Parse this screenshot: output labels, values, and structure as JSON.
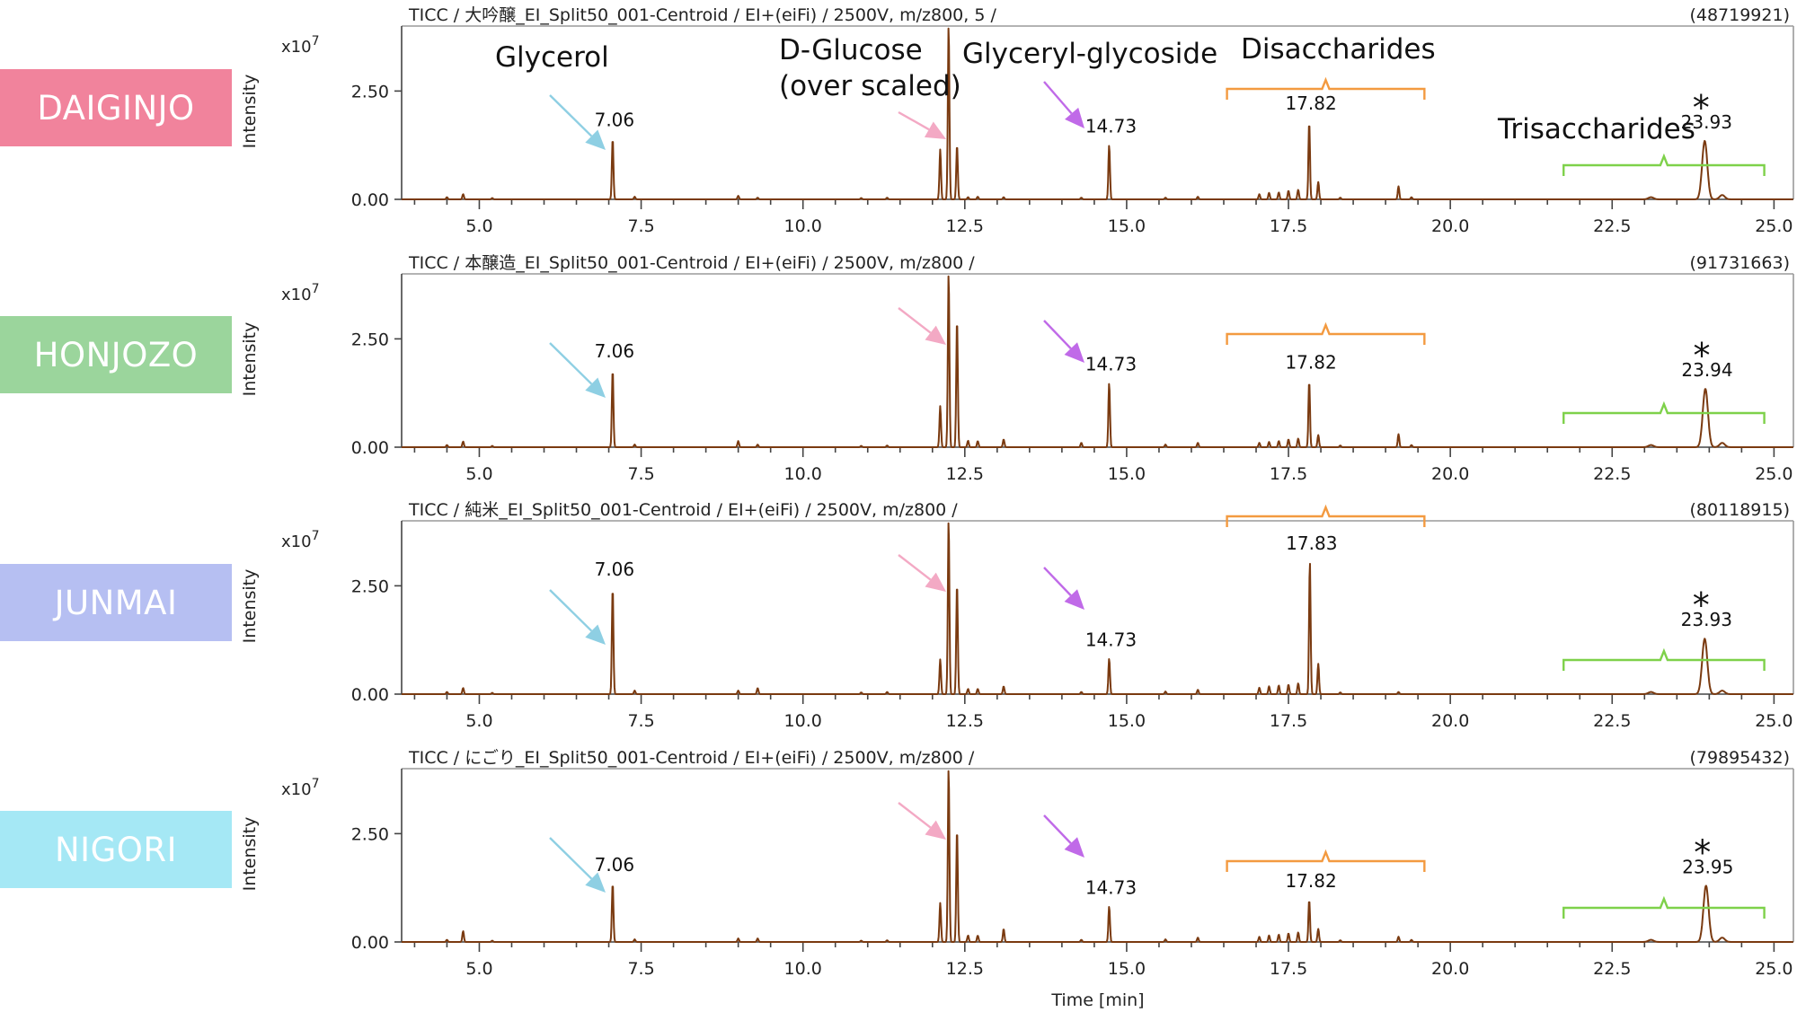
{
  "figure": {
    "xlabel": "Time [min]",
    "ylabel": "Intensity",
    "exponent_base": "x10",
    "exponent_power": "7",
    "annotations": {
      "glycerol": "Glycerol",
      "glucose_line1": "D-Glucose",
      "glucose_line2": "(over scaled)",
      "glyceryl_glycoside": "Glyceryl-glycoside",
      "disaccharides": "Disaccharides",
      "trisaccharides": "Trisaccharides",
      "star": "*"
    },
    "colors": {
      "trace": "#7a3a10",
      "glycerol_arrow": "#8ecfe3",
      "glucose_arrow": "#f3a9c4",
      "glycoside_arrow": "#c06ae8",
      "disaccharides_brace": "#f39a40",
      "trisaccharides_brace": "#7ed14a"
    }
  },
  "chart_data": [
    {
      "type": "line",
      "sample": "DAIGINJO",
      "badge_color": "#f1839c",
      "header": "TICC / 大吟醸_EI_Split50_001-Centroid / EI+(eiFi) / 2500V, m/z800, 5 /",
      "total_intensity": "(48719921)",
      "xlabel": "",
      "ylabel": "Intensity",
      "y_scale": "x10^7",
      "xlim": [
        3.8,
        25.3
      ],
      "ylim": [
        0,
        4.0
      ],
      "x_ticks": [
        "5.0",
        "7.5",
        "10.0",
        "12.5",
        "15.0",
        "17.5",
        "20.0",
        "22.5",
        "25.0"
      ],
      "y_ticks": [
        "0.00",
        "2.50"
      ],
      "peak_labels": [
        {
          "x": 7.06,
          "text": "7.06"
        },
        {
          "x": 14.73,
          "text": "14.73"
        },
        {
          "x": 17.82,
          "text": "17.82"
        },
        {
          "x": 23.93,
          "text": "23.93"
        }
      ],
      "peaks": [
        [
          4.5,
          0.05
        ],
        [
          4.75,
          0.12
        ],
        [
          5.2,
          0.03
        ],
        [
          7.06,
          1.4
        ],
        [
          7.4,
          0.06
        ],
        [
          9.0,
          0.08
        ],
        [
          9.3,
          0.04
        ],
        [
          10.9,
          0.03
        ],
        [
          11.3,
          0.04
        ],
        [
          12.12,
          1.15
        ],
        [
          12.25,
          4.0
        ],
        [
          12.38,
          1.25
        ],
        [
          12.55,
          0.05
        ],
        [
          12.7,
          0.06
        ],
        [
          13.1,
          0.05
        ],
        [
          14.3,
          0.04
        ],
        [
          14.73,
          1.25
        ],
        [
          15.6,
          0.04
        ],
        [
          16.1,
          0.06
        ],
        [
          17.05,
          0.12
        ],
        [
          17.2,
          0.15
        ],
        [
          17.35,
          0.16
        ],
        [
          17.5,
          0.2
        ],
        [
          17.65,
          0.22
        ],
        [
          17.82,
          1.78
        ],
        [
          17.96,
          0.4
        ],
        [
          18.3,
          0.04
        ],
        [
          19.2,
          0.3
        ],
        [
          19.4,
          0.05
        ],
        [
          23.1,
          0.05
        ],
        [
          23.93,
          1.35
        ],
        [
          24.2,
          0.1
        ]
      ]
    },
    {
      "type": "line",
      "sample": "HONJOZO",
      "badge_color": "#9bd59c",
      "header": "TICC / 本醸造_EI_Split50_001-Centroid / EI+(eiFi) / 2500V, m/z800 /",
      "total_intensity": "(91731663)",
      "xlabel": "",
      "ylabel": "Intensity",
      "y_scale": "x10^7",
      "xlim": [
        3.8,
        25.3
      ],
      "ylim": [
        0,
        4.0
      ],
      "x_ticks": [
        "5.0",
        "7.5",
        "10.0",
        "12.5",
        "15.0",
        "17.5",
        "20.0",
        "22.5",
        "25.0"
      ],
      "y_ticks": [
        "0.00",
        "2.50"
      ],
      "peak_labels": [
        {
          "x": 7.06,
          "text": "7.06"
        },
        {
          "x": 14.73,
          "text": "14.73"
        },
        {
          "x": 17.82,
          "text": "17.82"
        },
        {
          "x": 23.94,
          "text": "23.94"
        }
      ],
      "peaks": [
        [
          4.5,
          0.05
        ],
        [
          4.75,
          0.13
        ],
        [
          5.2,
          0.03
        ],
        [
          7.06,
          1.78
        ],
        [
          7.4,
          0.06
        ],
        [
          9.0,
          0.14
        ],
        [
          9.3,
          0.06
        ],
        [
          10.9,
          0.03
        ],
        [
          11.3,
          0.04
        ],
        [
          12.12,
          0.95
        ],
        [
          12.25,
          4.0
        ],
        [
          12.38,
          2.95
        ],
        [
          12.55,
          0.15
        ],
        [
          12.7,
          0.14
        ],
        [
          13.1,
          0.18
        ],
        [
          14.3,
          0.1
        ],
        [
          14.73,
          1.48
        ],
        [
          15.6,
          0.06
        ],
        [
          16.1,
          0.1
        ],
        [
          17.05,
          0.1
        ],
        [
          17.2,
          0.12
        ],
        [
          17.35,
          0.14
        ],
        [
          17.5,
          0.18
        ],
        [
          17.65,
          0.2
        ],
        [
          17.82,
          1.52
        ],
        [
          17.96,
          0.28
        ],
        [
          18.3,
          0.04
        ],
        [
          19.2,
          0.3
        ],
        [
          19.4,
          0.05
        ],
        [
          23.1,
          0.05
        ],
        [
          23.94,
          1.35
        ],
        [
          24.2,
          0.1
        ]
      ]
    },
    {
      "type": "line",
      "sample": "JUNMAI",
      "badge_color": "#b6bff2",
      "header": "TICC / 純米_EI_Split50_001-Centroid / EI+(eiFi) / 2500V, m/z800 /",
      "total_intensity": "(80118915)",
      "xlabel": "",
      "ylabel": "Intensity",
      "y_scale": "x10^7",
      "xlim": [
        3.8,
        25.3
      ],
      "ylim": [
        0,
        4.0
      ],
      "x_ticks": [
        "5.0",
        "7.5",
        "10.0",
        "12.5",
        "15.0",
        "17.5",
        "20.0",
        "22.5",
        "25.0"
      ],
      "y_ticks": [
        "0.00",
        "2.50"
      ],
      "peak_labels": [
        {
          "x": 7.06,
          "text": "7.06"
        },
        {
          "x": 14.73,
          "text": "14.73"
        },
        {
          "x": 17.83,
          "text": "17.83"
        },
        {
          "x": 23.93,
          "text": "23.93"
        }
      ],
      "peaks": [
        [
          4.5,
          0.05
        ],
        [
          4.75,
          0.14
        ],
        [
          5.2,
          0.03
        ],
        [
          7.06,
          2.45
        ],
        [
          7.4,
          0.08
        ],
        [
          9.0,
          0.08
        ],
        [
          9.3,
          0.14
        ],
        [
          10.9,
          0.04
        ],
        [
          11.3,
          0.05
        ],
        [
          12.12,
          0.8
        ],
        [
          12.25,
          4.0
        ],
        [
          12.38,
          2.55
        ],
        [
          12.55,
          0.12
        ],
        [
          12.7,
          0.12
        ],
        [
          13.1,
          0.18
        ],
        [
          14.3,
          0.05
        ],
        [
          14.73,
          0.82
        ],
        [
          15.6,
          0.06
        ],
        [
          16.1,
          0.1
        ],
        [
          17.05,
          0.15
        ],
        [
          17.2,
          0.18
        ],
        [
          17.35,
          0.2
        ],
        [
          17.5,
          0.22
        ],
        [
          17.65,
          0.25
        ],
        [
          17.83,
          3.05
        ],
        [
          17.96,
          0.7
        ],
        [
          18.3,
          0.04
        ],
        [
          19.2,
          0.05
        ],
        [
          23.1,
          0.05
        ],
        [
          23.93,
          1.28
        ],
        [
          24.2,
          0.08
        ]
      ]
    },
    {
      "type": "line",
      "sample": "NIGORI",
      "badge_color": "#a5e8f5",
      "header": "TICC / にごり_EI_Split50_001-Centroid / EI+(eiFi) / 2500V, m/z800 /",
      "total_intensity": "(79895432)",
      "xlabel": "Time [min]",
      "ylabel": "Intensity",
      "y_scale": "x10^7",
      "xlim": [
        3.8,
        25.3
      ],
      "ylim": [
        0,
        4.0
      ],
      "x_ticks": [
        "5.0",
        "7.5",
        "10.0",
        "12.5",
        "15.0",
        "17.5",
        "20.0",
        "22.5",
        "25.0"
      ],
      "y_ticks": [
        "0.00",
        "2.50"
      ],
      "peak_labels": [
        {
          "x": 7.06,
          "text": "7.06"
        },
        {
          "x": 14.73,
          "text": "14.73"
        },
        {
          "x": 17.82,
          "text": "17.82"
        },
        {
          "x": 23.95,
          "text": "23.95"
        }
      ],
      "peaks": [
        [
          4.5,
          0.05
        ],
        [
          4.75,
          0.25
        ],
        [
          5.2,
          0.03
        ],
        [
          7.06,
          1.35
        ],
        [
          7.4,
          0.06
        ],
        [
          9.0,
          0.08
        ],
        [
          9.3,
          0.08
        ],
        [
          10.9,
          0.03
        ],
        [
          11.3,
          0.04
        ],
        [
          12.12,
          0.9
        ],
        [
          12.25,
          4.0
        ],
        [
          12.38,
          2.6
        ],
        [
          12.55,
          0.15
        ],
        [
          12.7,
          0.15
        ],
        [
          13.1,
          0.3
        ],
        [
          14.3,
          0.05
        ],
        [
          14.73,
          0.82
        ],
        [
          15.6,
          0.06
        ],
        [
          16.1,
          0.1
        ],
        [
          17.05,
          0.12
        ],
        [
          17.2,
          0.15
        ],
        [
          17.35,
          0.17
        ],
        [
          17.5,
          0.2
        ],
        [
          17.65,
          0.22
        ],
        [
          17.82,
          0.97
        ],
        [
          17.96,
          0.3
        ],
        [
          18.3,
          0.04
        ],
        [
          19.2,
          0.12
        ],
        [
          19.4,
          0.05
        ],
        [
          23.1,
          0.05
        ],
        [
          23.95,
          1.3
        ],
        [
          24.2,
          0.1
        ]
      ]
    }
  ]
}
